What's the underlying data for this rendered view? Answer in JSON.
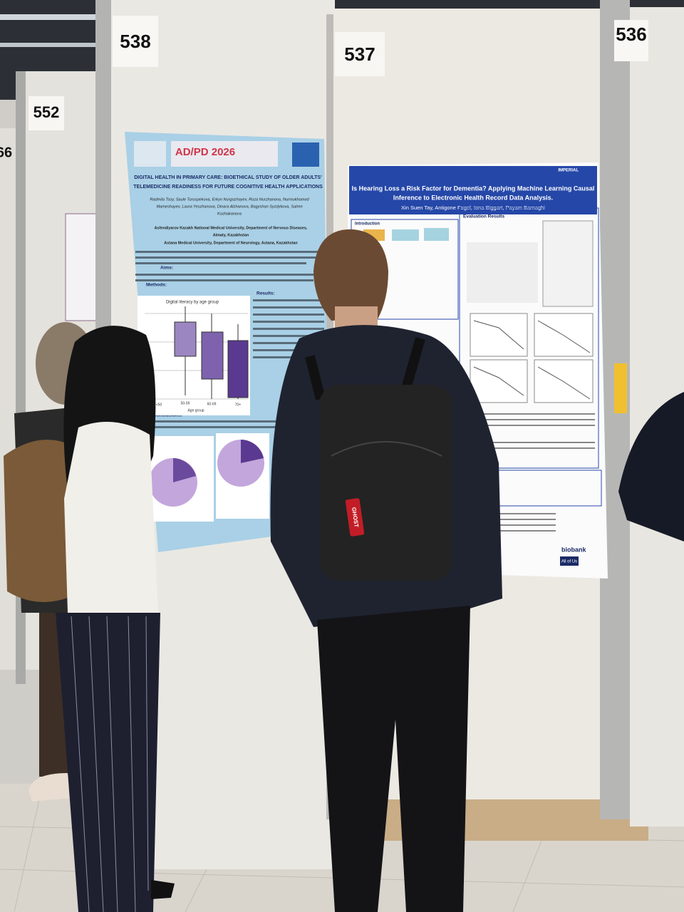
{
  "boards": {
    "b538": "538",
    "b537": "537",
    "b536": "536",
    "b552": "552",
    "b66": "66"
  },
  "left_poster": {
    "conference": "AD/PD 2026",
    "title_lines": [
      "DIGITAL HEALTH IN PRIMARY CARE: BIOETHICAL STUDY OF OLDER ADULTS'",
      "TELEMEDICINE READINESS FOR FUTURE COGNITIVE HEALTH APPLICATIONS"
    ],
    "author_lines": [
      "Radmila Tsoy, Saule Turuspekova, Erkyn Nurgozhayev, Roza Nurzhanova, Nurmukhamed",
      "Mameshayev, Laura Yeszhanova, Dinara Alzhanova, Bagyshan Syzdykova, Salren",
      "Kozhakanova"
    ],
    "affiliation_lines": [
      "Asfendiyarov Kazakh National Medical University, Department of Nervous Diseases,",
      "Almaty, Kazakhstan",
      "Astana Medical University, Department of Neurology, Astana, Kazakhstan"
    ],
    "sections": [
      "Aims:",
      "Methods:",
      "Results:",
      "Conclusions:"
    ],
    "plot_title": "Digital literacy by age group",
    "plot_categories": [
      "<50",
      "50-59",
      "60-69",
      "70+"
    ],
    "plot_xlabel": "Age group"
  },
  "right_poster": {
    "logo": "IMPERIAL",
    "title_lines": [
      "Is Hearing Loss a Risk Factor for Dementia? Applying Machine Learning Causal",
      "Inference to Electronic Health Record Data Analysis."
    ],
    "authors": "Xin Suen Tay, Antigone Fogel, Iona Biggart, Payam Barnaghi",
    "sections": [
      "Introduction",
      "Evaluation Results"
    ],
    "sponsors": [
      "biobank",
      "All of Us"
    ]
  },
  "bag_tag": "GHOST"
}
